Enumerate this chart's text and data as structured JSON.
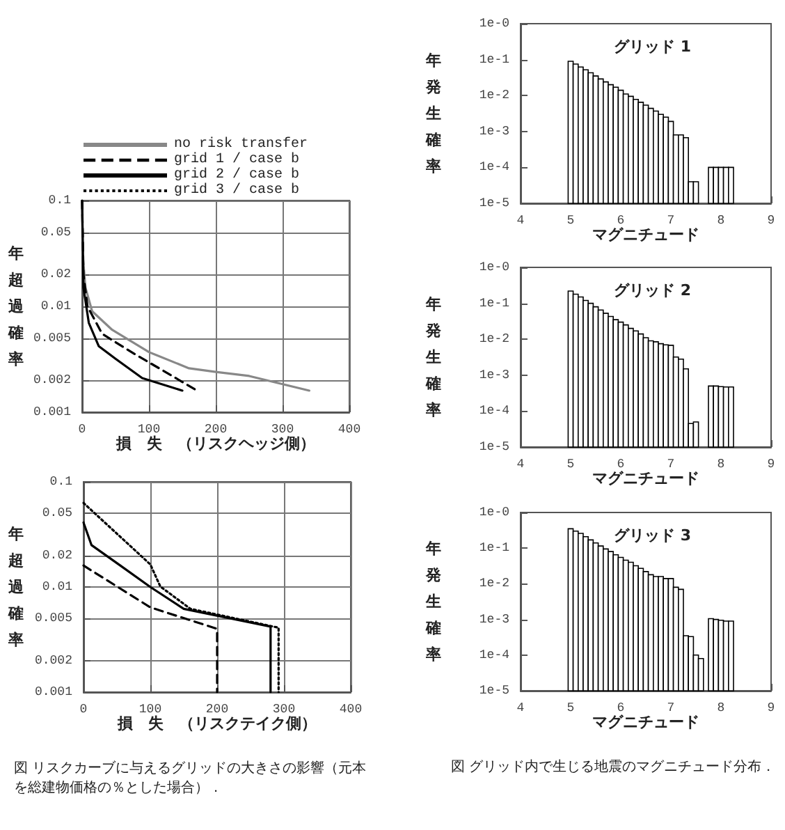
{
  "chart_data": [
    {
      "type": "line",
      "xlabel": "損　失　（リスクヘッジ側）",
      "ylabel": "年超過確率",
      "log": "y",
      "grid": true,
      "legend": "top",
      "marker": "none",
      "xlim": [
        0,
        400
      ],
      "xticks": [
        0,
        100,
        200,
        300,
        400
      ],
      "ylim": [
        0.001,
        0.1
      ],
      "yticks": [
        0.001,
        0.002,
        0.005,
        0.01,
        0.02,
        0.05,
        0.1
      ],
      "series": [
        {
          "name": "no risk transfer",
          "color": "#888888",
          "line_style": "solid",
          "x": [
            0,
            1,
            5,
            15,
            45,
            100,
            160,
            200,
            250,
            340
          ],
          "values": [
            0.1,
            0.03,
            0.015,
            0.009,
            0.006,
            0.0037,
            0.0026,
            0.0024,
            0.0022,
            0.0016
          ]
        },
        {
          "name": "grid 1 / case b",
          "color": "#000000",
          "line_style": "dashed",
          "x": [
            0,
            2,
            8,
            30,
            80,
            120,
            172
          ],
          "values": [
            0.1,
            0.02,
            0.01,
            0.0055,
            0.0035,
            0.0025,
            0.0016
          ]
        },
        {
          "name": "grid 2 / case b",
          "color": "#000000",
          "line_style": "solid",
          "x": [
            0,
            2,
            10,
            25,
            50,
            90,
            150
          ],
          "values": [
            0.1,
            0.015,
            0.007,
            0.0042,
            0.0032,
            0.0021,
            0.0016
          ]
        },
        {
          "name": "grid 3 / case b",
          "color": "#000000",
          "line_style": "dotted"
        }
      ]
    },
    {
      "type": "line",
      "xlabel": "損　失　（リスクテイク側）",
      "ylabel": "年超過確率",
      "log": "y",
      "grid": true,
      "marker": "none",
      "xlim": [
        0,
        400
      ],
      "xticks": [
        0,
        100,
        200,
        300,
        400
      ],
      "ylim": [
        0.001,
        0.1
      ],
      "yticks": [
        0.001,
        0.002,
        0.005,
        0.01,
        0.02,
        0.05,
        0.1
      ],
      "annotations": [
        "図 リスクカーブに与えるグリッドの大きさの影響（元本を総建物価格の％とした場合）．"
      ],
      "series": [
        {
          "color": "#000000",
          "line_style": "dashed",
          "x": [
            0,
            100,
            200,
            200
          ],
          "values": [
            0.016,
            0.0064,
            0.004,
            0.001
          ]
        },
        {
          "color": "#000000",
          "line_style": "solid",
          "x": [
            0,
            12,
            55,
            100,
            150,
            280,
            280
          ],
          "values": [
            0.041,
            0.025,
            0.016,
            0.01,
            0.0062,
            0.0042,
            0.001
          ]
        },
        {
          "color": "#000000",
          "line_style": "dotted",
          "x": [
            0,
            100,
            115,
            160,
            292,
            292
          ],
          "values": [
            0.063,
            0.0164,
            0.0101,
            0.0062,
            0.0041,
            0.001
          ]
        }
      ]
    },
    {
      "type": "histogram",
      "title": "グリッド 1",
      "xlabel": "マグニチュード",
      "ylabel": "年発生確率",
      "log": "y",
      "grid": false,
      "color": "#000000",
      "xlim": [
        4,
        9
      ],
      "xticks": [
        4,
        5,
        6,
        7,
        8,
        9
      ],
      "ylim": [
        1e-05,
        1
      ],
      "yticks": [
        {
          "value": 1e-05,
          "label": "1e-5"
        },
        {
          "value": 0.0001,
          "label": "1e-4"
        },
        {
          "value": 0.001,
          "label": "1e-3"
        },
        {
          "value": 0.01,
          "label": "1e-2"
        },
        {
          "value": 0.1,
          "label": "1e-1"
        },
        {
          "value": 1,
          "label": "1e-0"
        }
      ],
      "bins": [
        4.95,
        5.05,
        5.15,
        5.25,
        5.35,
        5.45,
        5.55,
        5.65,
        5.75,
        5.85,
        5.95,
        6.05,
        6.15,
        6.25,
        6.35,
        6.45,
        6.55,
        6.65,
        6.75,
        6.85,
        6.95,
        7.05,
        7.15,
        7.25,
        7.35,
        7.45,
        7.55,
        7.65,
        7.75,
        7.85,
        7.95,
        8.05,
        8.15,
        8.25
      ],
      "values": [
        0.09,
        0.075,
        0.062,
        0.052,
        0.043,
        0.035,
        0.029,
        0.024,
        0.02,
        0.017,
        0.014,
        0.011,
        0.0095,
        0.0078,
        0.0065,
        0.0054,
        0.0044,
        0.0037,
        0.003,
        0.0025,
        0.0019,
        0.0008,
        0.0008,
        0.00067,
        4e-05,
        4e-05,
        null,
        null,
        0.0001,
        0.0001,
        0.0001,
        0.0001,
        0.0001
      ]
    },
    {
      "type": "histogram",
      "title": "グリッド 2",
      "xlabel": "マグニチュード",
      "ylabel": "年発生確率",
      "log": "y",
      "grid": false,
      "color": "#000000",
      "xlim": [
        4,
        9
      ],
      "xticks": [
        4,
        5,
        6,
        7,
        8,
        9
      ],
      "ylim": [
        1e-05,
        1
      ],
      "yticks": [
        {
          "value": 1e-05,
          "label": "1e-5"
        },
        {
          "value": 0.0001,
          "label": "1e-4"
        },
        {
          "value": 0.001,
          "label": "1e-3"
        },
        {
          "value": 0.01,
          "label": "1e-2"
        },
        {
          "value": 0.1,
          "label": "1e-1"
        },
        {
          "value": 1,
          "label": "1e-0"
        }
      ],
      "bins": [
        4.95,
        5.05,
        5.15,
        5.25,
        5.35,
        5.45,
        5.55,
        5.65,
        5.75,
        5.85,
        5.95,
        6.05,
        6.15,
        6.25,
        6.35,
        6.45,
        6.55,
        6.65,
        6.75,
        6.85,
        6.95,
        7.05,
        7.15,
        7.25,
        7.35,
        7.45,
        7.55,
        7.65,
        7.75,
        7.85,
        7.95,
        8.05,
        8.15,
        8.25
      ],
      "values": [
        0.22,
        0.18,
        0.15,
        0.12,
        0.1,
        0.08,
        0.065,
        0.053,
        0.043,
        0.035,
        0.03,
        0.025,
        0.02,
        0.017,
        0.014,
        0.011,
        0.009,
        0.0085,
        0.0075,
        0.007,
        0.0068,
        0.0032,
        0.0028,
        0.0015,
        4.5e-05,
        5e-05,
        null,
        null,
        0.0005,
        0.0005,
        0.00048,
        0.00047,
        0.00047
      ]
    },
    {
      "type": "histogram",
      "title": "グリッド 3",
      "xlabel": "マグニチュード",
      "ylabel": "年発生確率",
      "log": "y",
      "grid": false,
      "color": "#000000",
      "xlim": [
        4,
        9
      ],
      "xticks": [
        4,
        5,
        6,
        7,
        8,
        9
      ],
      "ylim": [
        1e-05,
        1
      ],
      "yticks": [
        {
          "value": 1e-05,
          "label": "1e-5"
        },
        {
          "value": 0.0001,
          "label": "1e-4"
        },
        {
          "value": 0.001,
          "label": "1e-3"
        },
        {
          "value": 0.01,
          "label": "1e-2"
        },
        {
          "value": 0.1,
          "label": "1e-1"
        },
        {
          "value": 1,
          "label": "1e-0"
        }
      ],
      "annotations": [
        "図 グリッド内で生じる地震のマグニチュード分布．"
      ],
      "bins": [
        4.95,
        5.05,
        5.15,
        5.25,
        5.35,
        5.45,
        5.55,
        5.65,
        5.75,
        5.85,
        5.95,
        6.05,
        6.15,
        6.25,
        6.35,
        6.45,
        6.55,
        6.65,
        6.75,
        6.85,
        6.95,
        7.05,
        7.15,
        7.25,
        7.35,
        7.45,
        7.55,
        7.65,
        7.75,
        7.85,
        7.95,
        8.05,
        8.15,
        8.25
      ],
      "values": [
        0.35,
        0.3,
        0.26,
        0.21,
        0.17,
        0.14,
        0.115,
        0.095,
        0.08,
        0.065,
        0.055,
        0.046,
        0.04,
        0.032,
        0.027,
        0.022,
        0.018,
        0.016,
        0.016,
        0.014,
        0.014,
        0.008,
        0.007,
        0.00035,
        0.00033,
        0.0001,
        8e-05,
        null,
        0.00105,
        0.001,
        0.00095,
        0.0009,
        0.0009
      ]
    }
  ]
}
